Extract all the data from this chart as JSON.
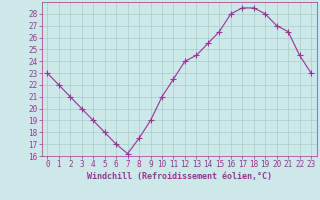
{
  "x": [
    0,
    1,
    2,
    3,
    4,
    5,
    6,
    7,
    8,
    9,
    10,
    11,
    12,
    13,
    14,
    15,
    16,
    17,
    18,
    19,
    20,
    21,
    22,
    23
  ],
  "y": [
    23,
    22,
    21,
    20,
    19,
    18,
    17,
    16.2,
    17.5,
    19,
    21,
    22.5,
    24,
    24.5,
    25.5,
    26.5,
    28,
    28.5,
    28.5,
    28,
    27,
    26.5,
    24.5,
    23
  ],
  "line_color": "#993399",
  "marker": "+",
  "marker_size": 4,
  "bg_color": "#cce8e8",
  "grid_color": "#aacccc",
  "xlabel": "Windchill (Refroidissement éolien,°C)",
  "xlabel_color": "#993399",
  "tick_color": "#993399",
  "ylim": [
    16,
    29
  ],
  "xlim": [
    -0.5,
    23.5
  ],
  "yticks": [
    16,
    17,
    18,
    19,
    20,
    21,
    22,
    23,
    24,
    25,
    26,
    27,
    28
  ],
  "xticks": [
    0,
    1,
    2,
    3,
    4,
    5,
    6,
    7,
    8,
    9,
    10,
    11,
    12,
    13,
    14,
    15,
    16,
    17,
    18,
    19,
    20,
    21,
    22,
    23
  ],
  "xtick_labels": [
    "0",
    "1",
    "2",
    "3",
    "4",
    "5",
    "6",
    "7",
    "8",
    "9",
    "10",
    "11",
    "12",
    "13",
    "14",
    "15",
    "16",
    "17",
    "18",
    "19",
    "20",
    "21",
    "22",
    "23"
  ],
  "xlabel_fontsize": 6,
  "tick_fontsize": 5.5,
  "line_width": 0.8
}
